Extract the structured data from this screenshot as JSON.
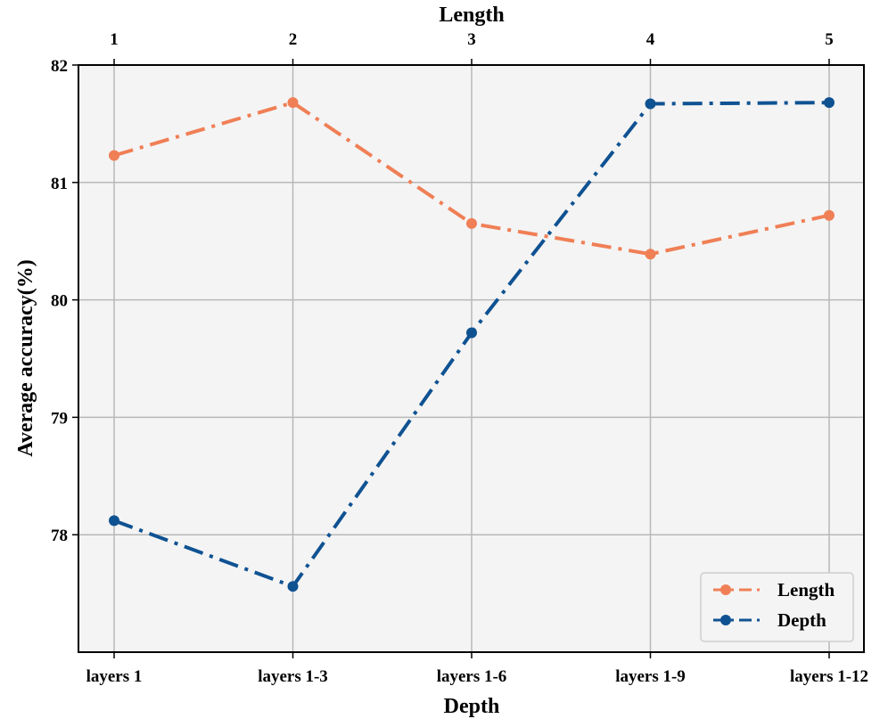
{
  "chart_data": {
    "type": "line",
    "xlabel": "Depth",
    "x2label": "Length",
    "ylabel": "Average  accuracy(%)",
    "categories": [
      "layers 1",
      "layers 1-3",
      "layers 1-6",
      "layers 1-9",
      "layers 1-12"
    ],
    "top_categories": [
      "1",
      "2",
      "3",
      "4",
      "5"
    ],
    "ylim": [
      77,
      82
    ],
    "yticks": [
      "78",
      "79",
      "80",
      "81",
      "82"
    ],
    "grid": true,
    "legend_position": "bottom-right",
    "series": [
      {
        "name": "Length",
        "color": "#f07f56",
        "values": [
          81.23,
          81.68,
          80.65,
          80.39,
          80.72
        ]
      },
      {
        "name": "Depth",
        "color": "#0f5292",
        "values": [
          78.12,
          77.56,
          79.72,
          81.67,
          81.68
        ]
      }
    ]
  }
}
